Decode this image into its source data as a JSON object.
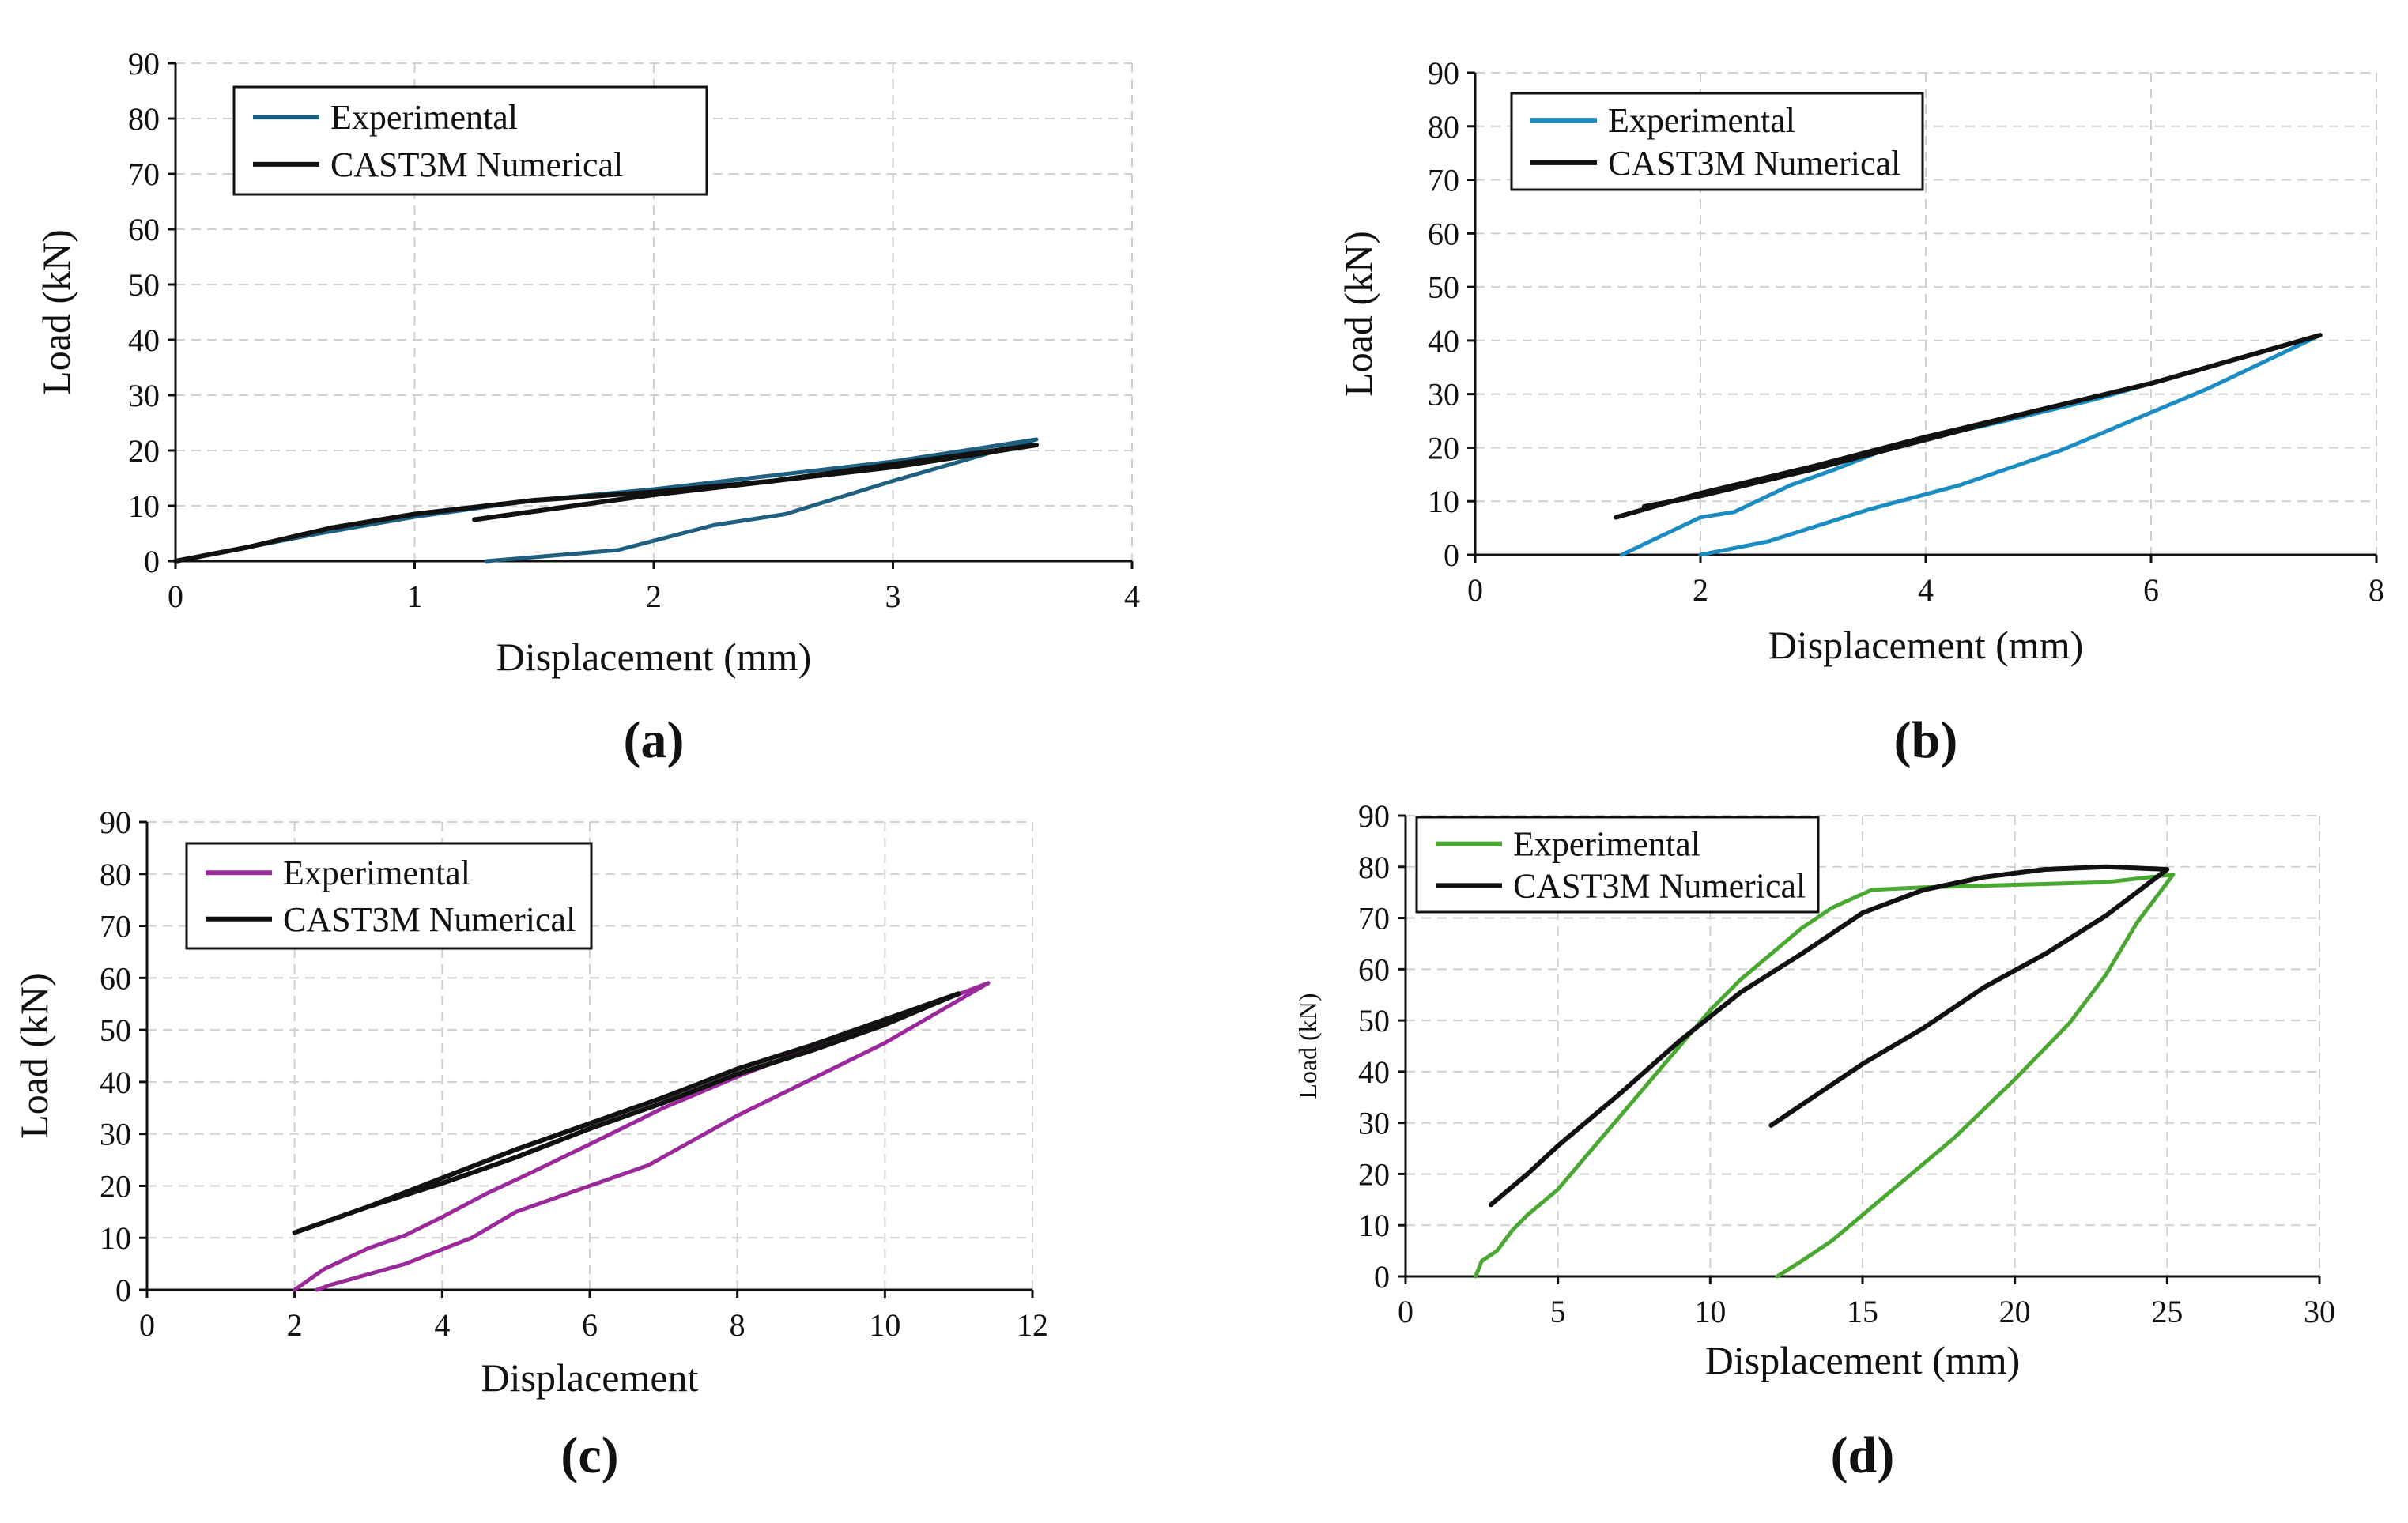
{
  "chart_data": [
    {
      "panel_label": "(a)",
      "type": "line",
      "xlabel": "Displacement (mm)",
      "ylabel": "Load (kN)",
      "xlim": [
        0,
        4
      ],
      "ylim": [
        0,
        90
      ],
      "xticks": [
        0,
        1,
        2,
        3,
        4
      ],
      "yticks": [
        0,
        10,
        20,
        30,
        40,
        50,
        60,
        70,
        80,
        90
      ],
      "grid": true,
      "legend_position": "top-left",
      "series": [
        {
          "name": "Experimental",
          "color": "#1f5f80",
          "points": [
            [
              0,
              0
            ],
            [
              0.3,
              2.5
            ],
            [
              0.6,
              5
            ],
            [
              1.0,
              8
            ],
            [
              1.5,
              11
            ],
            [
              2.0,
              13
            ],
            [
              2.5,
              15.5
            ],
            [
              3.0,
              18
            ],
            [
              3.6,
              22
            ],
            [
              3.0,
              14.5
            ],
            [
              2.55,
              8.5
            ],
            [
              2.25,
              6.5
            ],
            [
              1.85,
              2
            ],
            [
              1.3,
              0
            ]
          ]
        },
        {
          "name": "CAST3M Numerical",
          "color": "#111111",
          "points": [
            [
              0,
              0
            ],
            [
              0.3,
              2.5
            ],
            [
              0.65,
              6
            ],
            [
              1.0,
              8.5
            ],
            [
              1.5,
              11
            ],
            [
              2.0,
              12.5
            ],
            [
              2.5,
              14.5
            ],
            [
              3.0,
              17.5
            ],
            [
              3.6,
              21
            ],
            [
              3.0,
              17
            ],
            [
              2.5,
              14.5
            ],
            [
              2.0,
              12
            ],
            [
              1.5,
              9
            ],
            [
              1.25,
              7.5
            ]
          ]
        }
      ]
    },
    {
      "panel_label": "(b)",
      "type": "line",
      "xlabel": "Displacement (mm)",
      "ylabel": "Load (kN)",
      "xlim": [
        0,
        8
      ],
      "ylim": [
        0,
        90
      ],
      "xticks": [
        0,
        2,
        4,
        6,
        8
      ],
      "yticks": [
        0,
        10,
        20,
        30,
        40,
        50,
        60,
        70,
        80,
        90
      ],
      "grid": true,
      "legend_position": "top-left",
      "series": [
        {
          "name": "Experimental",
          "color": "#1a8cc0",
          "points": [
            [
              1.3,
              0
            ],
            [
              2.0,
              7
            ],
            [
              2.3,
              8
            ],
            [
              2.8,
              13
            ],
            [
              3.2,
              16
            ],
            [
              3.8,
              21
            ],
            [
              4.5,
              24
            ],
            [
              5.5,
              29
            ],
            [
              6.5,
              35
            ],
            [
              7.5,
              41
            ],
            [
              6.5,
              31
            ],
            [
              5.2,
              19.5
            ],
            [
              4.3,
              13
            ],
            [
              3.5,
              8.5
            ],
            [
              2.6,
              2.5
            ],
            [
              2.0,
              0
            ]
          ]
        },
        {
          "name": "CAST3M Numerical",
          "color": "#111111",
          "points": [
            [
              1.25,
              7
            ],
            [
              2.0,
              11.5
            ],
            [
              3.0,
              16.5
            ],
            [
              4.0,
              22
            ],
            [
              5.0,
              27
            ],
            [
              6.0,
              32
            ],
            [
              7.5,
              41
            ],
            [
              6.0,
              32
            ],
            [
              5.0,
              27
            ],
            [
              4.0,
              21.5
            ],
            [
              3.0,
              16
            ],
            [
              2.0,
              11
            ],
            [
              1.5,
              9
            ]
          ]
        }
      ]
    },
    {
      "panel_label": "(c)",
      "type": "line",
      "xlabel": "Displacement",
      "ylabel": "Load (kN)",
      "xlim": [
        0,
        12
      ],
      "ylim": [
        0,
        90
      ],
      "xticks": [
        0,
        2,
        4,
        6,
        8,
        10,
        12
      ],
      "yticks": [
        0,
        10,
        20,
        30,
        40,
        50,
        60,
        70,
        80,
        90
      ],
      "grid": true,
      "legend_position": "top-left",
      "series": [
        {
          "name": "Experimental",
          "color": "#9a2a9a",
          "points": [
            [
              2.0,
              0
            ],
            [
              2.4,
              4
            ],
            [
              3.0,
              8
            ],
            [
              3.5,
              10.5
            ],
            [
              4.0,
              14
            ],
            [
              4.6,
              18.5
            ],
            [
              5.2,
              22.5
            ],
            [
              6.0,
              28
            ],
            [
              7.0,
              35
            ],
            [
              8.0,
              41
            ],
            [
              9.0,
              46.5
            ],
            [
              10.0,
              51.5
            ],
            [
              11.4,
              59
            ],
            [
              10.0,
              47.5
            ],
            [
              8.0,
              33.5
            ],
            [
              6.8,
              24
            ],
            [
              6.0,
              20
            ],
            [
              5.0,
              15
            ],
            [
              4.4,
              10
            ],
            [
              3.5,
              5
            ],
            [
              2.5,
              1
            ],
            [
              2.3,
              0
            ]
          ]
        },
        {
          "name": "CAST3M Numerical",
          "color": "#111111",
          "points": [
            [
              2.0,
              11
            ],
            [
              3.0,
              16
            ],
            [
              4.0,
              21.5
            ],
            [
              5.0,
              27
            ],
            [
              6.0,
              32
            ],
            [
              7.0,
              37
            ],
            [
              8.0,
              42.5
            ],
            [
              9.0,
              47
            ],
            [
              10.0,
              52
            ],
            [
              11.0,
              57
            ],
            [
              10.0,
              51
            ],
            [
              9.0,
              46
            ],
            [
              8.0,
              41.5
            ],
            [
              7.0,
              36
            ],
            [
              6.0,
              31
            ],
            [
              5.0,
              25.5
            ],
            [
              4.0,
              20.5
            ],
            [
              3.0,
              16
            ]
          ]
        }
      ]
    },
    {
      "panel_label": "(d)",
      "type": "line",
      "xlabel": "Displacement (mm)",
      "ylabel": "Load (kN)",
      "xlim": [
        0,
        30
      ],
      "ylim": [
        0,
        90
      ],
      "xticks": [
        0,
        5,
        10,
        15,
        20,
        25,
        30
      ],
      "yticks": [
        0,
        10,
        20,
        30,
        40,
        50,
        60,
        70,
        80,
        90
      ],
      "grid": true,
      "legend_position": "top-left",
      "series": [
        {
          "name": "Experimental",
          "color": "#4aa832",
          "points": [
            [
              2.3,
              0
            ],
            [
              2.5,
              3
            ],
            [
              3.0,
              5
            ],
            [
              3.5,
              9
            ],
            [
              4.0,
              12
            ],
            [
              5.0,
              17
            ],
            [
              6.0,
              24
            ],
            [
              7.0,
              31
            ],
            [
              8.0,
              38
            ],
            [
              9.0,
              45
            ],
            [
              10.0,
              52
            ],
            [
              11.0,
              58
            ],
            [
              12.0,
              63
            ],
            [
              13.0,
              68
            ],
            [
              14.0,
              72
            ],
            [
              15.3,
              75.5
            ],
            [
              17.0,
              76
            ],
            [
              20.0,
              76.5
            ],
            [
              23.0,
              77
            ],
            [
              25.2,
              78.5
            ],
            [
              24.0,
              69
            ],
            [
              23.0,
              59
            ],
            [
              21.8,
              49.5
            ],
            [
              20.0,
              38.5
            ],
            [
              18.0,
              27
            ],
            [
              16.0,
              17
            ],
            [
              14.0,
              7
            ],
            [
              13.0,
              3
            ],
            [
              12.2,
              0
            ]
          ]
        },
        {
          "name": "CAST3M Numerical",
          "color": "#111111",
          "points": [
            [
              2.8,
              14
            ],
            [
              4.0,
              20
            ],
            [
              5.0,
              25.5
            ],
            [
              7.0,
              35.5
            ],
            [
              9.0,
              46
            ],
            [
              11.0,
              55.5
            ],
            [
              13.0,
              63
            ],
            [
              15.0,
              71
            ],
            [
              17.0,
              75.5
            ],
            [
              19.0,
              78
            ],
            [
              21.0,
              79.5
            ],
            [
              23.0,
              80
            ],
            [
              25.0,
              79.5
            ],
            [
              23.0,
              70.5
            ],
            [
              21.0,
              63
            ],
            [
              19.0,
              56.5
            ],
            [
              17.0,
              48.5
            ],
            [
              15.0,
              41.5
            ],
            [
              13.0,
              33.5
            ],
            [
              12.0,
              29.5
            ]
          ]
        }
      ]
    }
  ]
}
